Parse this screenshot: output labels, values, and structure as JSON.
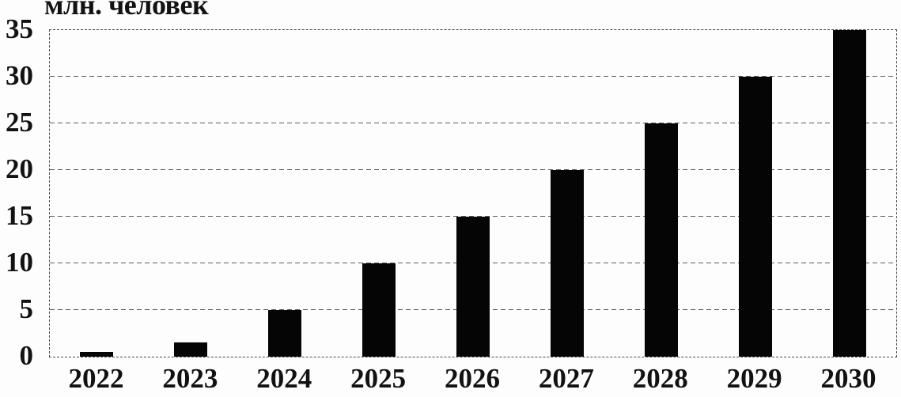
{
  "chart_data": {
    "type": "bar",
    "title": "",
    "ylabel": "млн. человек",
    "xlabel": "",
    "categories": [
      "2022",
      "2023",
      "2024",
      "2025",
      "2026",
      "2027",
      "2028",
      "2029",
      "2030"
    ],
    "values": [
      0.5,
      1.5,
      5,
      10,
      15,
      20,
      25,
      30,
      35
    ],
    "yticks": [
      0,
      5,
      10,
      15,
      20,
      25,
      30,
      35
    ],
    "ylim": [
      0,
      35
    ],
    "grid": "horizontal-dashed",
    "legend": "none",
    "frame": "dashed-border",
    "bar_color": "#050505",
    "gridline_color": "#5d5d5d",
    "text_color": "#121212",
    "background_color": "#fdfdfd"
  }
}
